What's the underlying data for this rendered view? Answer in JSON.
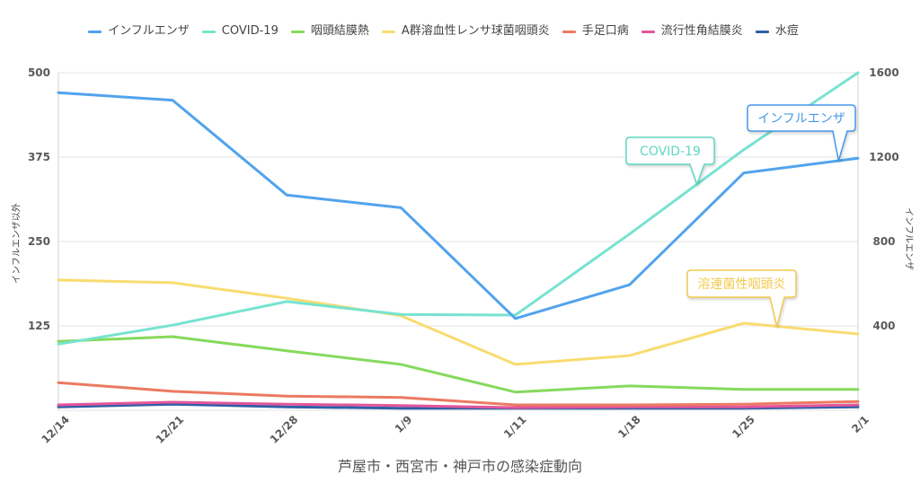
{
  "chart_data": {
    "type": "line",
    "title": "芦屋市・西宮市・神戸市の感染症動向",
    "title_position": "bottom",
    "legend_position": "top",
    "grid": true,
    "categories": [
      "12/14",
      "12/21",
      "12/28",
      "1/9",
      "1/11",
      "1/18",
      "1/25",
      "2/1"
    ],
    "y_left": {
      "label": "インフルエンザ以外",
      "range": [
        0,
        500
      ],
      "ticks": [
        125,
        250,
        375,
        500
      ]
    },
    "y_right": {
      "label": "インフルエンザ",
      "range": [
        0,
        1600
      ],
      "ticks": [
        400,
        800,
        1200,
        1600
      ]
    },
    "series": [
      {
        "name": "インフルエンザ",
        "axis": "right",
        "color": "#52a3ec",
        "values": [
          1505,
          1470,
          1020,
          960,
          435,
          595,
          1125,
          1195
        ]
      },
      {
        "name": "COVID-19",
        "axis": "left",
        "color": "#77e3d0",
        "values": [
          98,
          126,
          161,
          142,
          141,
          261,
          386,
          500
        ]
      },
      {
        "name": "咽頭結膜熱",
        "axis": "left",
        "color": "#86d95c",
        "values": [
          102,
          109,
          88,
          68,
          27,
          36,
          31,
          31
        ]
      },
      {
        "name": "A群溶血性レンサ球菌咽頭炎",
        "axis": "left",
        "color": "#f8dc70",
        "values": [
          193,
          189,
          166,
          140,
          68,
          81,
          129,
          113
        ]
      },
      {
        "name": "手足口病",
        "axis": "left",
        "color": "#eb7a62",
        "values": [
          41,
          28,
          21,
          19,
          8,
          8,
          9,
          13
        ]
      },
      {
        "name": "流行性角結膜炎",
        "axis": "left",
        "color": "#e3569c",
        "values": [
          8,
          12,
          9,
          7,
          4,
          5,
          5,
          8
        ]
      },
      {
        "name": "水痘",
        "axis": "left",
        "color": "#2f5fa7",
        "values": [
          5,
          9,
          5,
          3,
          3,
          3,
          3,
          5
        ]
      }
    ],
    "annotations": [
      {
        "text": "インフルエンザ",
        "color": "#4698ea"
      },
      {
        "text": "COVID-19",
        "color": "#5fd8c2"
      },
      {
        "text": "溶連菌性咽頭炎",
        "color": "#f2ca4e"
      }
    ]
  }
}
